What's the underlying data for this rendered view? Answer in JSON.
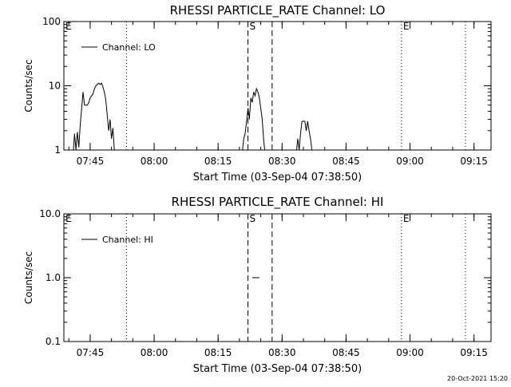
{
  "chart_data": [
    {
      "type": "line",
      "title": "RHESSI PARTICLE_RATE Channel: LO",
      "xlabel": "Start Time (03-Sep-04 07:38:50)",
      "ylabel": "Counts/sec",
      "yscale": "log",
      "ylim": [
        1,
        100
      ],
      "xlim": [
        "07:38:50",
        "09:19:00"
      ],
      "y_tick_labels": [
        "1",
        "10",
        "100"
      ],
      "y_tick_values": [
        1,
        10,
        100
      ],
      "x_tick_labels": [
        "07:45",
        "08:00",
        "08:15",
        "08:30",
        "08:45",
        "09:00",
        "09:15"
      ],
      "x_tick_values": [
        "07:45",
        "08:00",
        "08:15",
        "08:30",
        "08:45",
        "09:00",
        "09:15"
      ],
      "legend": {
        "placement": "top-left",
        "entries": [
          "Channel: LO"
        ]
      },
      "series": [
        {
          "name": "Channel: LO",
          "points": [
            [
              "07:41:00",
              0.6
            ],
            [
              "07:41:20",
              1.8
            ],
            [
              "07:41:40",
              1.0
            ],
            [
              "07:42:00",
              1.9
            ],
            [
              "07:42:20",
              1.1
            ],
            [
              "07:42:40",
              2.5
            ],
            [
              "07:43:00",
              4.5
            ],
            [
              "07:43:20",
              8.0
            ],
            [
              "07:43:40",
              5.0
            ],
            [
              "07:44:20",
              5.0
            ],
            [
              "07:44:40",
              5.5
            ],
            [
              "07:45:00",
              6.5
            ],
            [
              "07:45:40",
              7.5
            ],
            [
              "07:46:00",
              9.0
            ],
            [
              "07:46:20",
              10.0
            ],
            [
              "07:46:40",
              10.5
            ],
            [
              "07:47:00",
              11.0
            ],
            [
              "07:47:20",
              10.5
            ],
            [
              "07:47:40",
              11.0
            ],
            [
              "07:48:00",
              9.5
            ],
            [
              "07:48:20",
              8.0
            ],
            [
              "07:48:40",
              6.0
            ],
            [
              "07:49:00",
              3.5
            ],
            [
              "07:49:20",
              2.0
            ],
            [
              "07:49:40",
              3.0
            ],
            [
              "07:50:00",
              1.5
            ],
            [
              "07:50:20",
              2.2
            ],
            [
              "07:50:40",
              1.0
            ],
            [
              "07:51:00",
              0.6
            ]
          ]
        },
        {
          "name": "Channel: LO",
          "points": [
            [
              "08:20:40",
              0.6
            ],
            [
              "08:21:00",
              1.5
            ],
            [
              "08:21:20",
              1.8
            ],
            [
              "08:21:40",
              2.8
            ],
            [
              "08:22:00",
              4.5
            ],
            [
              "08:22:20",
              3.0
            ],
            [
              "08:22:40",
              6.5
            ],
            [
              "08:23:00",
              5.5
            ],
            [
              "08:23:20",
              8.0
            ],
            [
              "08:23:40",
              7.0
            ],
            [
              "08:24:00",
              9.0
            ],
            [
              "08:24:20",
              8.0
            ],
            [
              "08:24:40",
              6.5
            ],
            [
              "08:25:00",
              4.5
            ],
            [
              "08:25:20",
              3.0
            ],
            [
              "08:25:40",
              1.5
            ],
            [
              "08:26:00",
              0.6
            ]
          ]
        },
        {
          "name": "Channel: LO",
          "points": [
            [
              "08:33:20",
              0.6
            ],
            [
              "08:33:40",
              1.5
            ],
            [
              "08:34:00",
              1.0
            ],
            [
              "08:34:20",
              1.8
            ],
            [
              "08:34:40",
              2.8
            ],
            [
              "08:35:20",
              2.8
            ],
            [
              "08:35:40",
              2.0
            ],
            [
              "08:36:00",
              2.8
            ],
            [
              "08:36:20",
              2.0
            ],
            [
              "08:36:40",
              1.5
            ],
            [
              "08:37:00",
              1.0
            ],
            [
              "08:37:20",
              0.6
            ]
          ]
        }
      ],
      "markers": [
        {
          "time": "07:38:50",
          "style": "dotted",
          "label": "E"
        },
        {
          "time": "07:53:30",
          "style": "dotted",
          "label": ""
        },
        {
          "time": "08:22:00",
          "style": "dashed",
          "label": "S"
        },
        {
          "time": "08:27:40",
          "style": "dashed",
          "label": ""
        },
        {
          "time": "08:58:00",
          "style": "dotted",
          "label": "E"
        },
        {
          "time": "09:13:00",
          "style": "dotted",
          "label": ""
        }
      ]
    },
    {
      "type": "line",
      "title": "RHESSI PARTICLE_RATE Channel: HI",
      "xlabel": "Start Time (03-Sep-04 07:38:50)",
      "ylabel": "Counts/sec",
      "yscale": "log",
      "ylim": [
        0.1,
        10
      ],
      "xlim": [
        "07:38:50",
        "09:19:00"
      ],
      "y_tick_labels": [
        "0.1",
        "1.0",
        "10.0"
      ],
      "y_tick_values": [
        0.1,
        1,
        10
      ],
      "x_tick_labels": [
        "07:45",
        "08:00",
        "08:15",
        "08:30",
        "08:45",
        "09:00",
        "09:15"
      ],
      "x_tick_values": [
        "07:45",
        "08:00",
        "08:15",
        "08:30",
        "08:45",
        "09:00",
        "09:15"
      ],
      "legend": {
        "placement": "top-left",
        "entries": [
          "Channel: HI"
        ]
      },
      "series": [
        {
          "name": "Channel: HI",
          "points": [
            [
              "08:23:00",
              1.0
            ],
            [
              "08:24:40",
              1.0
            ]
          ]
        }
      ],
      "markers": [
        {
          "time": "07:38:50",
          "style": "dotted",
          "label": "E"
        },
        {
          "time": "07:53:30",
          "style": "dotted",
          "label": ""
        },
        {
          "time": "08:22:00",
          "style": "dashed",
          "label": "S"
        },
        {
          "time": "08:27:40",
          "style": "dashed",
          "label": ""
        },
        {
          "time": "08:58:00",
          "style": "dotted",
          "label": "E"
        },
        {
          "time": "09:13:00",
          "style": "dotted",
          "label": ""
        }
      ]
    }
  ],
  "footer": {
    "stamp": "20-Oct-2021 15:20"
  }
}
